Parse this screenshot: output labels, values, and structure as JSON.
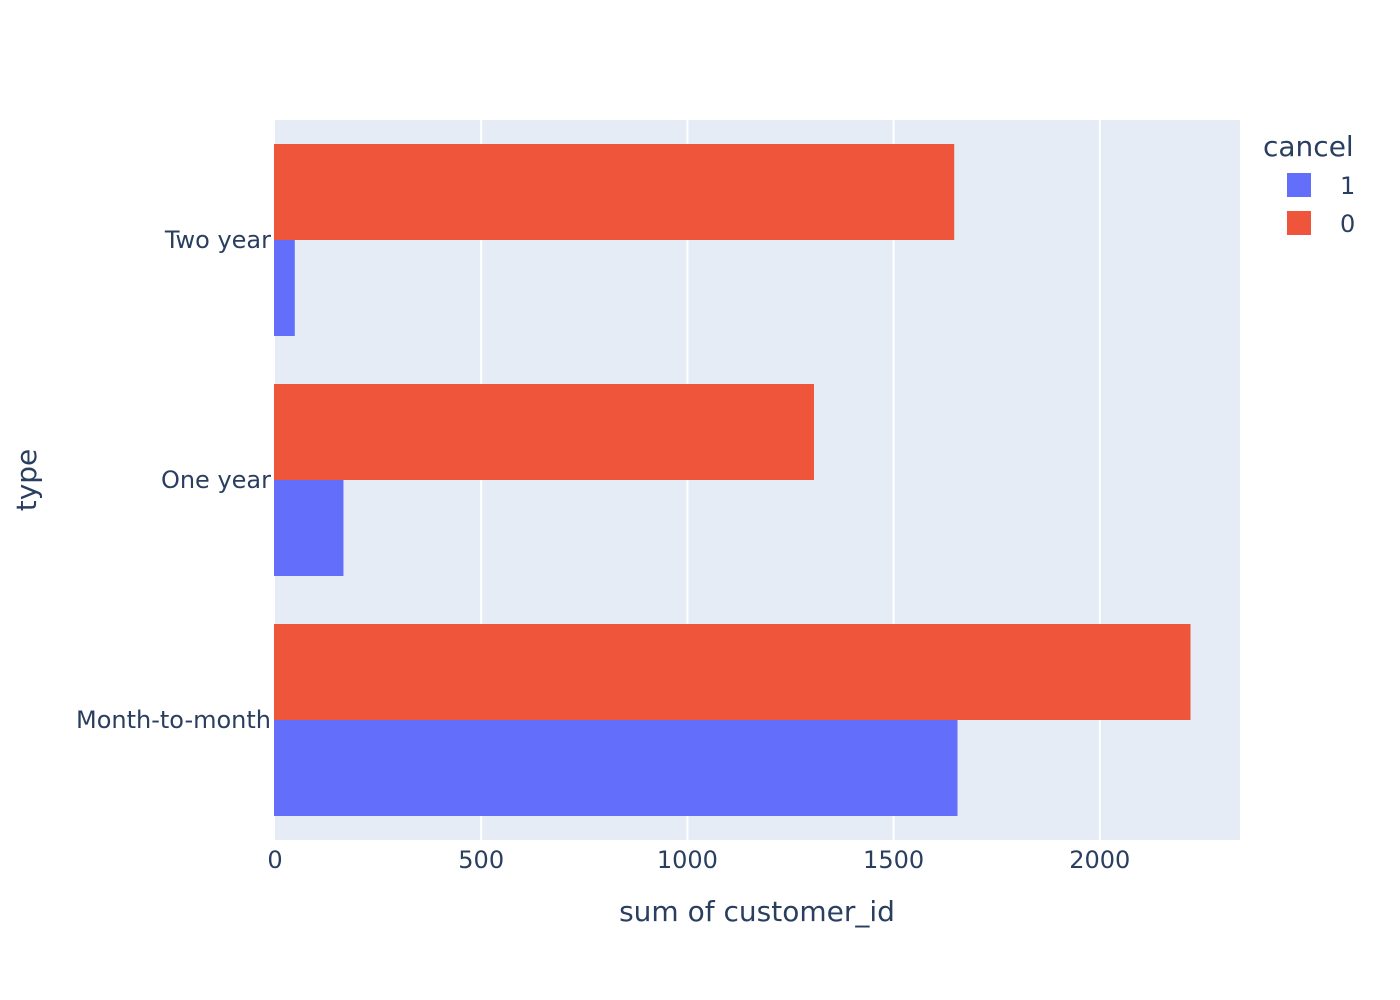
{
  "chart_data": {
    "type": "bar",
    "orientation": "horizontal",
    "barmode": "group",
    "title": "",
    "xlabel": "sum of customer_id",
    "ylabel": "type",
    "xlim": [
      0,
      2340
    ],
    "x_ticks": [
      0,
      500,
      1000,
      1500,
      2000
    ],
    "x_tick_labels": [
      "0",
      "500",
      "1000",
      "1500",
      "2000"
    ],
    "categories": [
      "Month-to-month",
      "One year",
      "Two year"
    ],
    "grid": true,
    "legend": {
      "title": "cancel",
      "placement": "top-right"
    },
    "series": [
      {
        "name": "1",
        "color": "#636efa",
        "values": [
          1655,
          166,
          48
        ]
      },
      {
        "name": "0",
        "color": "#ef553b",
        "values": [
          2220,
          1307,
          1647
        ]
      }
    ]
  },
  "colors": {
    "plot_background": "#e5ecf6",
    "grid": "#ffffff",
    "text": "#2a3f5f"
  }
}
